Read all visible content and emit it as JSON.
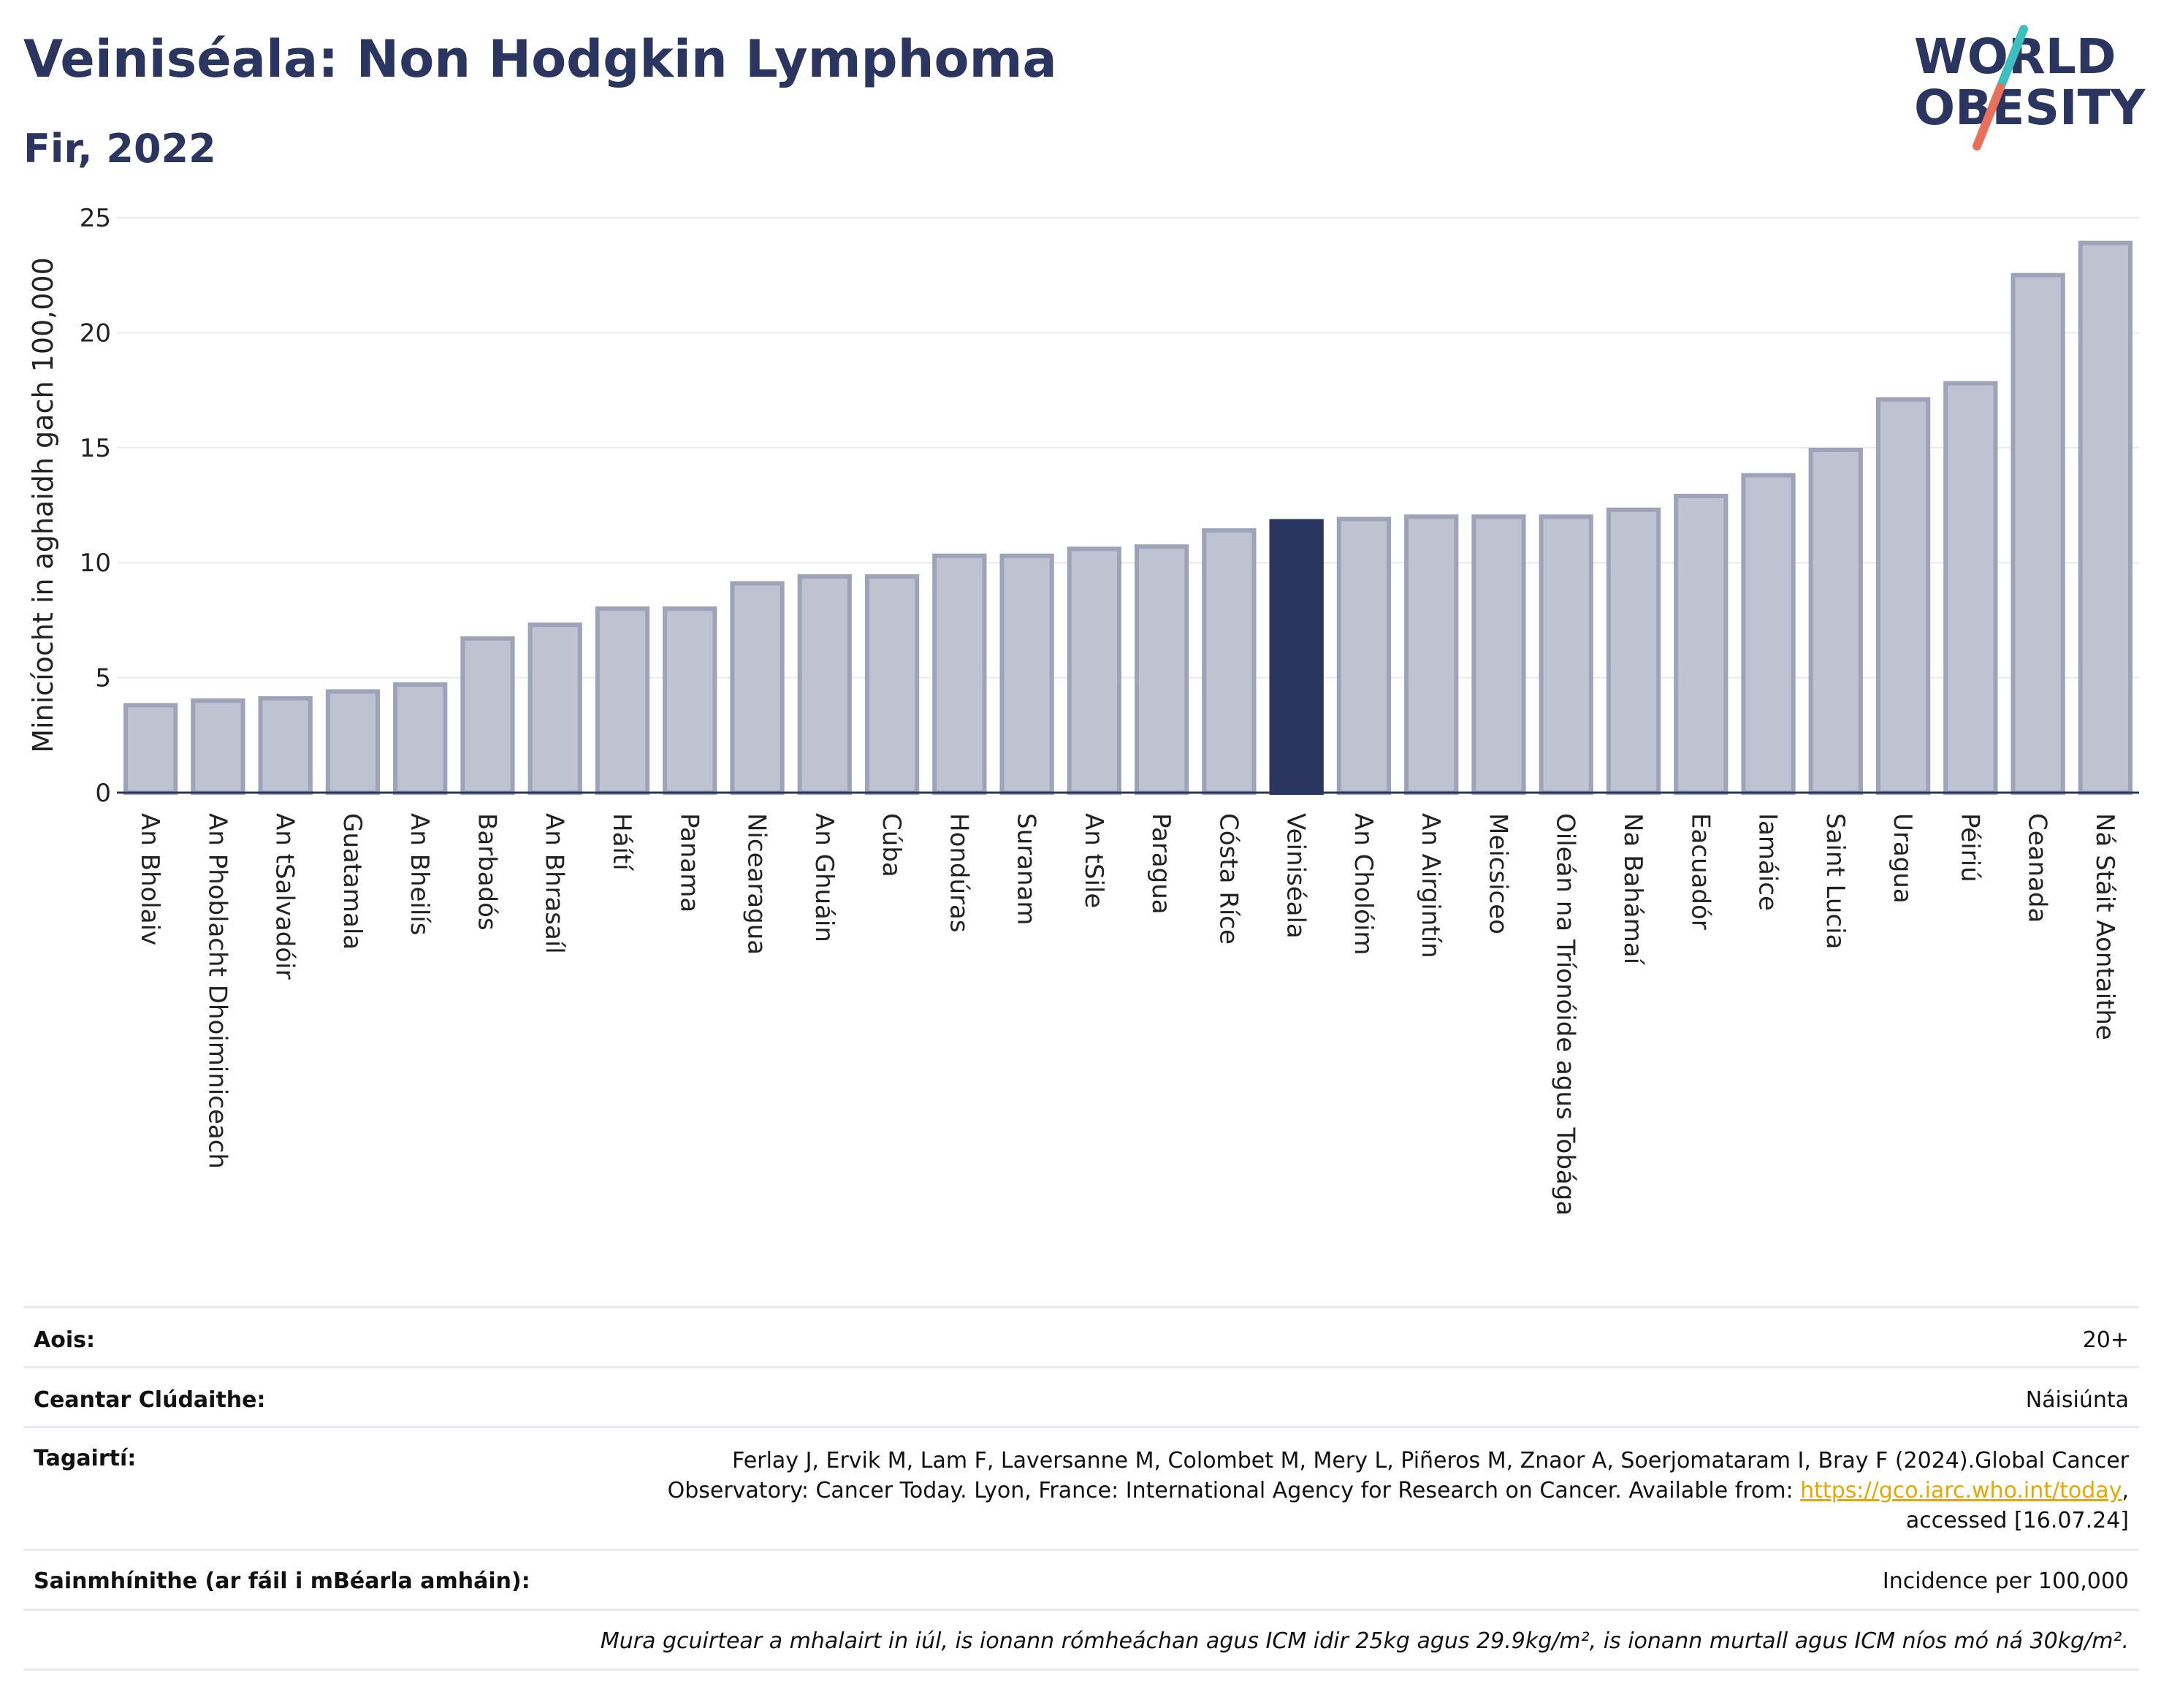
{
  "header": {
    "title": "Veiniséala: Non Hodgkin Lymphoma",
    "subtitle": "Fir, 2022"
  },
  "logo": {
    "line1": "WORLD",
    "line2": "OBESITY",
    "colors": {
      "text": "#2a3560",
      "slash_top": "#3bbfbf",
      "slash_bottom": "#e8705a"
    }
  },
  "chart_data": {
    "type": "bar",
    "ylabel": "Minicíocht in aghaidh gach 100,000",
    "ylim": [
      0,
      25
    ],
    "yticks": [
      0,
      5,
      10,
      15,
      20,
      25
    ],
    "grid": true,
    "highlight": "Veiniséala",
    "colors": {
      "bar": "#bfc2d0",
      "bar_edge": "#9ea3ba",
      "highlight": "#2a3560"
    },
    "categories": [
      "An Bholaiv",
      "An Phoblacht Dhoiminiceach",
      "An tSalvadóir",
      "Guatamala",
      "An Bheilís",
      "Barbadós",
      "An Bhrasaíl",
      "Háítí",
      "Panama",
      "Nicearagua",
      "An Ghuáin",
      "Cúba",
      "Hondúras",
      "Suranam",
      "An tSile",
      "Paragua",
      "Cósta Ríce",
      "Veiniséala",
      "An Cholóim",
      "An Airgintín",
      "Meicsiceo",
      "Oileán na Tríonóide agus Tobága",
      "Na Bahámaí",
      "Eacuadór",
      "Iamáice",
      "Saint Lucia",
      "Uragua",
      "Péiriú",
      "Ceanada",
      "Ná Stáit Aontaithe"
    ],
    "values": [
      3.8,
      4.0,
      4.1,
      4.4,
      4.7,
      6.7,
      7.3,
      8.0,
      8.0,
      9.1,
      9.4,
      9.4,
      10.3,
      10.3,
      10.6,
      10.7,
      11.4,
      11.8,
      11.9,
      12.0,
      12.0,
      12.0,
      12.3,
      12.9,
      13.8,
      14.9,
      17.1,
      17.8,
      22.5,
      23.9
    ]
  },
  "info": {
    "age_label": "Aois:",
    "age_value": "20+",
    "area_label": "Ceantar Clúdaithe:",
    "area_value": "Náisiúnta",
    "ref_label": "Tagairtí:",
    "ref_text_1": "Ferlay J, Ervik M, Lam F, Laversanne M, Colombet M, Mery L, Piñeros M, Znaor A, Soerjomataram I, Bray F (2024).Global Cancer Observatory: Cancer Today. Lyon, France: International Agency for Research on Cancer. Available from: ",
    "ref_link": "https://gco.iarc.who.int/today",
    "ref_text_2": ", accessed [16.07.24]",
    "def_label": "Sainmhínithe (ar fáil i mBéarla amháin):",
    "def_value": "Incidence per 100,000",
    "note": "Mura gcuirtear a mhalairt in iúl, is ionann rómheáchan agus ICM idir 25kg agus 29.9kg/m², is ionann murtall agus ICM níos mó ná 30kg/m²."
  }
}
